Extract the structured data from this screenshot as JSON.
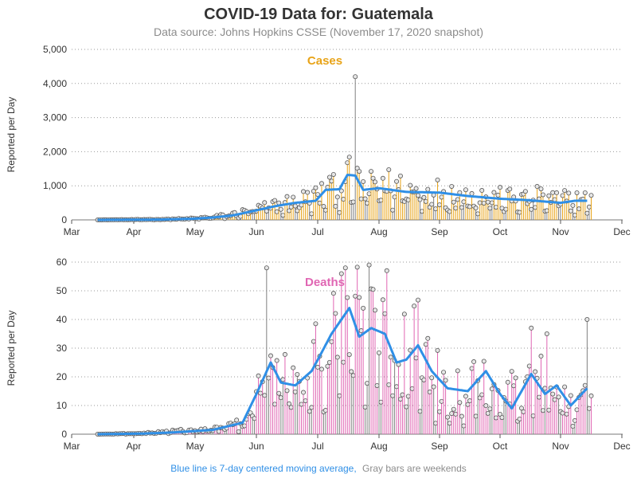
{
  "title": "COVID-19 Data for: Guatemala",
  "subtitle": "Data source: Johns Hopkins CSSE (November 17, 2020 snapshot)",
  "footnote": {
    "blue_text": "Blue line is 7-day centered moving average,",
    "gray_text": "Gray bars are weekends"
  },
  "colors": {
    "cases": "#e8a317",
    "deaths": "#e066b3",
    "average": "#2f8fe6",
    "weekend": "#808080",
    "text": "#333333",
    "subtle": "#8c8c8c"
  },
  "chart_data": [
    {
      "type": "bar",
      "name": "Cases",
      "ylabel": "Reported per Day",
      "ylim": [
        0,
        5000
      ],
      "yticks": [
        "0",
        "1,000",
        "2,000",
        "3,000",
        "4,000",
        "5,000"
      ],
      "x_tick_labels": [
        "Mar",
        "Apr",
        "May",
        "Jun",
        "Jul",
        "Aug",
        "Sep",
        "Oct",
        "Nov",
        "Dec"
      ],
      "xlim": [
        "2020-03-01",
        "2020-12-01"
      ],
      "grid": "horizontal dotted",
      "knots": [
        [
          "2020-03-14",
          0
        ],
        [
          "2020-04-01",
          8
        ],
        [
          "2020-04-15",
          15
        ],
        [
          "2020-05-01",
          40
        ],
        [
          "2020-05-10",
          80
        ],
        [
          "2020-05-20",
          150
        ],
        [
          "2020-06-01",
          300
        ],
        [
          "2020-06-10",
          420
        ],
        [
          "2020-06-20",
          520
        ],
        [
          "2020-07-01",
          700
        ],
        [
          "2020-07-10",
          880
        ],
        [
          "2020-07-17",
          1200
        ],
        [
          "2020-07-24",
          900
        ],
        [
          "2020-08-05",
          1000
        ],
        [
          "2020-08-20",
          850
        ],
        [
          "2020-09-01",
          800
        ],
        [
          "2020-09-15",
          700
        ],
        [
          "2020-10-01",
          620
        ],
        [
          "2020-10-15",
          600
        ],
        [
          "2020-11-01",
          580
        ],
        [
          "2020-11-14",
          560
        ]
      ],
      "average_knots": [
        [
          "2020-03-14",
          0
        ],
        [
          "2020-04-01",
          5
        ],
        [
          "2020-04-15",
          10
        ],
        [
          "2020-05-01",
          35
        ],
        [
          "2020-05-10",
          70
        ],
        [
          "2020-05-20",
          130
        ],
        [
          "2020-06-01",
          280
        ],
        [
          "2020-06-10",
          400
        ],
        [
          "2020-06-20",
          500
        ],
        [
          "2020-06-30",
          560
        ],
        [
          "2020-07-05",
          880
        ],
        [
          "2020-07-12",
          900
        ],
        [
          "2020-07-16",
          1320
        ],
        [
          "2020-07-20",
          1300
        ],
        [
          "2020-07-24",
          880
        ],
        [
          "2020-08-01",
          930
        ],
        [
          "2020-08-15",
          820
        ],
        [
          "2020-09-01",
          800
        ],
        [
          "2020-09-15",
          700
        ],
        [
          "2020-10-01",
          620
        ],
        [
          "2020-10-15",
          580
        ],
        [
          "2020-11-01",
          500
        ],
        [
          "2020-11-08",
          560
        ],
        [
          "2020-11-14",
          560
        ]
      ],
      "spikes": [
        [
          "2020-07-20",
          4200,
          true
        ],
        [
          "2020-07-07",
          1250,
          false
        ],
        [
          "2020-08-03",
          1220,
          false
        ],
        [
          "2020-10-20",
          980,
          false
        ]
      ]
    },
    {
      "type": "bar",
      "name": "Deaths",
      "ylabel": "Reported per Day",
      "ylim": [
        0,
        60
      ],
      "yticks": [
        "0",
        "10",
        "20",
        "30",
        "40",
        "50",
        "60"
      ],
      "x_tick_labels": [
        "Mar",
        "Apr",
        "May",
        "Jun",
        "Jul",
        "Aug",
        "Sep",
        "Oct",
        "Nov",
        "Dec"
      ],
      "xlim": [
        "2020-03-01",
        "2020-12-01"
      ],
      "grid": "horizontal dotted",
      "knots": [
        [
          "2020-03-14",
          0
        ],
        [
          "2020-04-05",
          0.3
        ],
        [
          "2020-04-20",
          1
        ],
        [
          "2020-05-10",
          1.5
        ],
        [
          "2020-05-25",
          4
        ],
        [
          "2020-06-01",
          12
        ],
        [
          "2020-06-08",
          22
        ],
        [
          "2020-06-15",
          18
        ],
        [
          "2020-06-25",
          22
        ],
        [
          "2020-07-05",
          32
        ],
        [
          "2020-07-18",
          42
        ],
        [
          "2020-07-25",
          34
        ],
        [
          "2020-08-05",
          36
        ],
        [
          "2020-08-15",
          27
        ],
        [
          "2020-08-22",
          31
        ],
        [
          "2020-09-01",
          18
        ],
        [
          "2020-09-10",
          15
        ],
        [
          "2020-09-20",
          22
        ],
        [
          "2020-10-01",
          12
        ],
        [
          "2020-10-15",
          17
        ],
        [
          "2020-10-25",
          18
        ],
        [
          "2020-11-05",
          12
        ],
        [
          "2020-11-14",
          16
        ]
      ],
      "average_knots": [
        [
          "2020-03-14",
          0
        ],
        [
          "2020-04-05",
          0.2
        ],
        [
          "2020-04-20",
          0.6
        ],
        [
          "2020-05-10",
          1.5
        ],
        [
          "2020-05-25",
          4
        ],
        [
          "2020-06-01",
          14
        ],
        [
          "2020-06-08",
          25
        ],
        [
          "2020-06-13",
          18
        ],
        [
          "2020-06-20",
          17
        ],
        [
          "2020-06-28",
          22
        ],
        [
          "2020-07-08",
          35
        ],
        [
          "2020-07-17",
          44
        ],
        [
          "2020-07-22",
          34
        ],
        [
          "2020-07-28",
          37
        ],
        [
          "2020-08-04",
          35
        ],
        [
          "2020-08-10",
          25
        ],
        [
          "2020-08-15",
          26
        ],
        [
          "2020-08-21",
          31
        ],
        [
          "2020-08-28",
          22
        ],
        [
          "2020-09-05",
          16
        ],
        [
          "2020-09-15",
          15
        ],
        [
          "2020-09-24",
          22
        ],
        [
          "2020-10-01",
          14
        ],
        [
          "2020-10-07",
          9
        ],
        [
          "2020-10-17",
          21
        ],
        [
          "2020-10-24",
          14
        ],
        [
          "2020-10-30",
          17
        ],
        [
          "2020-11-06",
          10
        ],
        [
          "2020-11-14",
          16
        ]
      ],
      "spikes": [
        [
          "2020-06-06",
          58,
          true
        ],
        [
          "2020-07-15",
          58,
          false
        ],
        [
          "2020-07-27",
          59,
          true
        ],
        [
          "2020-08-05",
          57,
          false
        ],
        [
          "2020-10-17",
          37,
          false
        ],
        [
          "2020-10-25",
          35,
          false
        ],
        [
          "2020-11-14",
          40,
          true
        ]
      ]
    }
  ]
}
